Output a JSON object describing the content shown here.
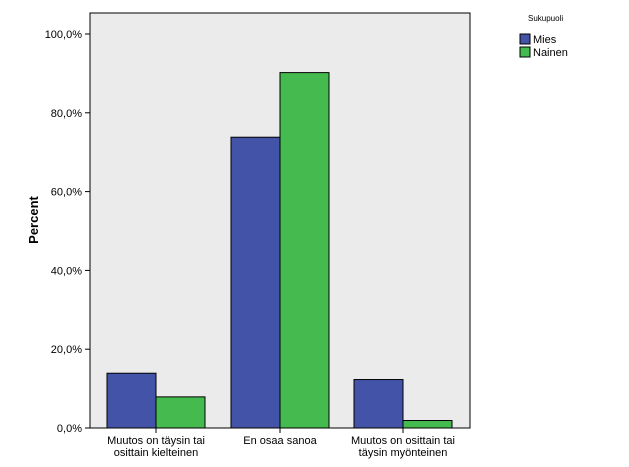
{
  "chart_data": {
    "type": "bar",
    "categories": [
      [
        "Muutos on täysin tai",
        "osittain kielteinen"
      ],
      [
        "En osaa sanoa"
      ],
      [
        "Muutos on osittain tai",
        "täysin myönteinen"
      ]
    ],
    "series": [
      {
        "name": "Mies",
        "color": "#4353a8",
        "values": [
          13.9,
          73.8,
          12.3
        ]
      },
      {
        "name": "Nainen",
        "color": "#45bb4f",
        "values": [
          7.9,
          90.2,
          1.9
        ]
      }
    ],
    "title": "",
    "xlabel": "",
    "ylabel": "Percent",
    "ylim": [
      0,
      100
    ],
    "yticks": [
      0,
      20,
      40,
      60,
      80,
      100
    ],
    "ytick_labels": [
      "0,0%",
      "20,0%",
      "40,0%",
      "60,0%",
      "80,0%",
      "100,0%"
    ],
    "legend": {
      "title": "Sukupuoli",
      "position": "right"
    },
    "plot_background": "#ebebeb",
    "grid": false
  }
}
